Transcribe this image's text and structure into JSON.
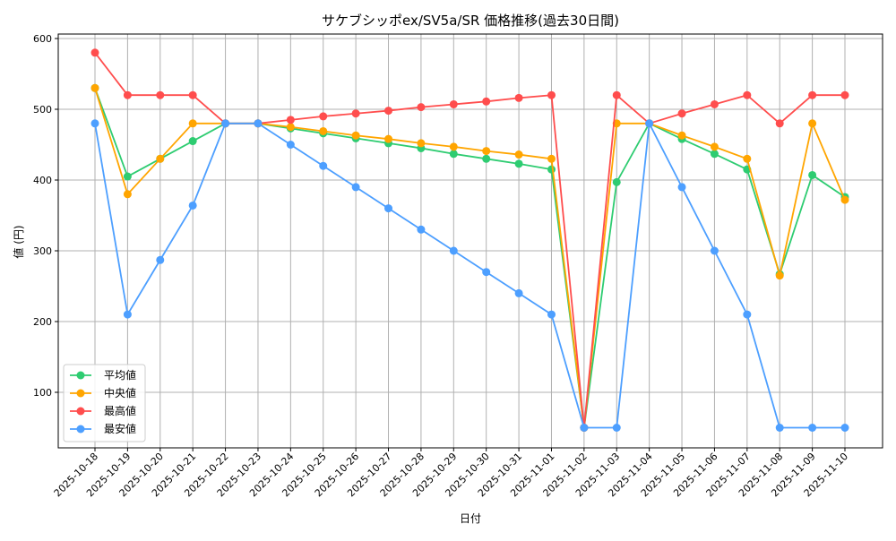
{
  "chart_data": {
    "type": "line",
    "title": "サケブシッポex/SV5a/SR 価格推移(過去30日間)",
    "xlabel": "日付",
    "ylabel": "値 (円)",
    "ylim": [
      21,
      606
    ],
    "yticks": [
      100,
      200,
      300,
      400,
      500,
      600
    ],
    "grid": true,
    "legend_position": "bottom-left",
    "categories": [
      "2025-10-18",
      "2025-10-19",
      "2025-10-20",
      "2025-10-21",
      "2025-10-22",
      "2025-10-23",
      "2025-10-24",
      "2025-10-25",
      "2025-10-26",
      "2025-10-27",
      "2025-10-28",
      "2025-10-29",
      "2025-10-30",
      "2025-10-31",
      "2025-11-01",
      "2025-11-02",
      "2025-11-03",
      "2025-11-04",
      "2025-11-05",
      "2025-11-06",
      "2025-11-07",
      "2025-11-08",
      "2025-11-09",
      "2025-11-10"
    ],
    "series": [
      {
        "name": "平均値",
        "color": "#2ecc71",
        "values": [
          530,
          405,
          430,
          455,
          480,
          480,
          473,
          466,
          459,
          452,
          445,
          437,
          430,
          423,
          415,
          50,
          397,
          480,
          458,
          437,
          415,
          267,
          407,
          376
        ]
      },
      {
        "name": "中央値",
        "color": "#ffa500",
        "values": [
          530,
          380,
          430,
          480,
          480,
          480,
          475,
          469,
          463,
          458,
          452,
          447,
          441,
          436,
          430,
          50,
          480,
          480,
          463,
          447,
          430,
          265,
          480,
          372
        ]
      },
      {
        "name": "最高値",
        "color": "#ff4d4d",
        "values": [
          580,
          520,
          520,
          520,
          480,
          480,
          485,
          490,
          494,
          498,
          503,
          507,
          511,
          516,
          520,
          50,
          520,
          480,
          494,
          507,
          520,
          480,
          520,
          520
        ]
      },
      {
        "name": "最安値",
        "color": "#4d9fff",
        "values": [
          480,
          210,
          287,
          364,
          480,
          480,
          450,
          420,
          390,
          360,
          330,
          300,
          270,
          240,
          210,
          50,
          50,
          480,
          390,
          300,
          210,
          50,
          50,
          50
        ]
      }
    ]
  }
}
